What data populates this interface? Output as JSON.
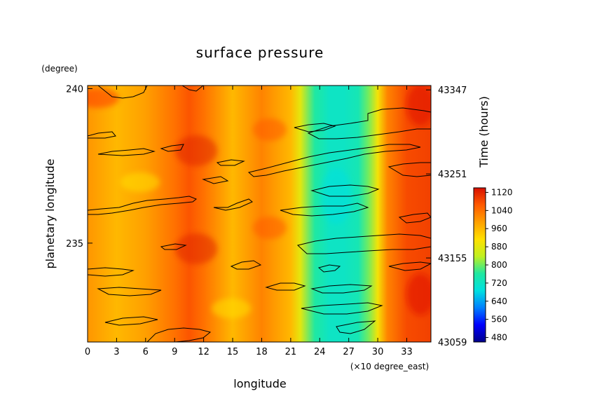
{
  "chart_data": {
    "type": "heatmap",
    "title": "surface pressure",
    "xlabel": "longitude",
    "x_unit": "(×10 degree_east)",
    "ylabel": "planetary longitude",
    "y_unit": "(degree)",
    "right_axis_label": "Time (hours)",
    "xlim": [
      0,
      35.5
    ],
    "ylim": [
      231.8,
      240.1
    ],
    "right_ylim": [
      43059,
      43352
    ],
    "x_ticks": [
      0,
      3,
      6,
      9,
      12,
      15,
      18,
      21,
      24,
      27,
      30,
      33
    ],
    "y_ticks": [
      235,
      240
    ],
    "right_ticks": [
      43059,
      43155,
      43251,
      43347
    ],
    "colorbar": {
      "ticks": [
        480,
        560,
        640,
        720,
        800,
        880,
        960,
        1040,
        1120
      ],
      "range": [
        460,
        1140
      ],
      "colors": [
        "#00008b",
        "#0000ff",
        "#0080ff",
        "#00e0e0",
        "#20e8a0",
        "#c0f020",
        "#ffe000",
        "#ffa000",
        "#ff5a00",
        "#d81000"
      ]
    },
    "longitude_profile": {
      "x": [
        0,
        3,
        6,
        9,
        10.5,
        12,
        15,
        18,
        21,
        22,
        23.5,
        25,
        26.5,
        28,
        29,
        30,
        31,
        33,
        35.5
      ],
      "values": [
        1000,
        960,
        990,
        1040,
        1070,
        1040,
        960,
        1020,
        960,
        880,
        760,
        720,
        720,
        740,
        800,
        900,
        1020,
        1080,
        1090
      ]
    }
  }
}
